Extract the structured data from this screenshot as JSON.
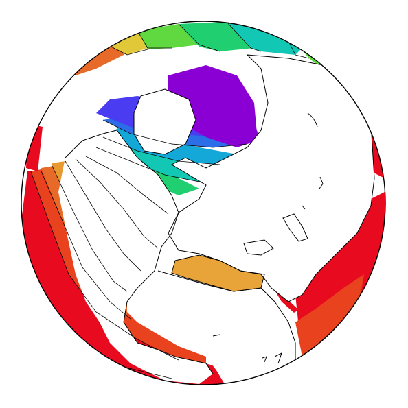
{
  "map": {
    "projection": "orthographic",
    "background": "#ffffff",
    "land_color": "#ffffff",
    "outline_color": "#000000",
    "palette": [
      "#8a00d4",
      "#4a3cf0",
      "#2c6ee8",
      "#14a8d8",
      "#12c8b4",
      "#20d070",
      "#60d840",
      "#b8e030",
      "#e0c838",
      "#e89a30",
      "#e86a28",
      "#e83a24",
      "#e80a1e"
    ]
  }
}
